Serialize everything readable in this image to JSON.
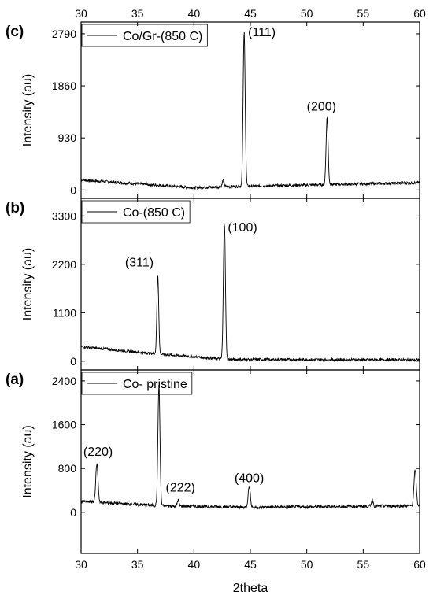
{
  "chart_data": {
    "type": "line",
    "xlabel": "2theta",
    "xlim": [
      30,
      60
    ],
    "x_ticks": [
      30,
      35,
      40,
      45,
      50,
      55,
      60
    ],
    "line_color": "#000000",
    "panels": [
      {
        "label": "(c)",
        "legend": "Co/Gr-(850 C)",
        "ylabel": "Intensity (au)",
        "ylim": [
          -150,
          3000
        ],
        "y_ticks": [
          0,
          930,
          1860,
          2790
        ],
        "baseline": {
          "x": [
            30,
            40,
            43,
            60
          ],
          "y": [
            180,
            40,
            60,
            130
          ]
        },
        "noise": 25,
        "peaks": [
          {
            "x": 42.6,
            "height": 120,
            "width": 0.08
          },
          {
            "x": 44.45,
            "height": 2750,
            "width": 0.09
          },
          {
            "x": 51.8,
            "height": 1200,
            "width": 0.09
          }
        ],
        "peak_labels": [
          {
            "text": "(111)",
            "x": 44.8,
            "y": 2750
          },
          {
            "text": "(200)",
            "x": 50.0,
            "y": 1420
          }
        ]
      },
      {
        "label": "(b)",
        "legend": "Co-(850 C)",
        "ylabel": "Intensity (au)",
        "ylim": [
          -200,
          3700
        ],
        "y_ticks": [
          0,
          1100,
          2200,
          3300
        ],
        "baseline": {
          "x": [
            30,
            36,
            43,
            60
          ],
          "y": [
            330,
            180,
            40,
            30
          ]
        },
        "noise": 30,
        "peaks": [
          {
            "x": 36.8,
            "height": 1800,
            "width": 0.08
          },
          {
            "x": 42.7,
            "height": 3100,
            "width": 0.09
          }
        ],
        "peak_labels": [
          {
            "text": "(311)",
            "x": 33.9,
            "y": 2150
          },
          {
            "text": "(100)",
            "x": 43.0,
            "y": 2950
          }
        ]
      },
      {
        "label": "(a)",
        "legend": "Co- pristine",
        "ylabel": "Intensity (au)",
        "ylim": [
          -750,
          2600
        ],
        "y_ticks": [
          0,
          800,
          1600,
          2400
        ],
        "baseline": {
          "x": [
            30,
            37,
            45,
            60
          ],
          "y": [
            200,
            120,
            90,
            120
          ]
        },
        "noise": 28,
        "peaks": [
          {
            "x": 31.4,
            "height": 700,
            "width": 0.1
          },
          {
            "x": 36.9,
            "height": 2200,
            "width": 0.09
          },
          {
            "x": 38.6,
            "height": 110,
            "width": 0.07
          },
          {
            "x": 44.9,
            "height": 380,
            "width": 0.1
          },
          {
            "x": 55.8,
            "height": 120,
            "width": 0.08
          },
          {
            "x": 59.6,
            "height": 650,
            "width": 0.1
          }
        ],
        "peak_labels": [
          {
            "text": "(220)",
            "x": 30.2,
            "y": 1030
          },
          {
            "text": "(222)",
            "x": 37.5,
            "y": 380
          },
          {
            "text": "(400)",
            "x": 43.6,
            "y": 550
          }
        ]
      }
    ]
  }
}
